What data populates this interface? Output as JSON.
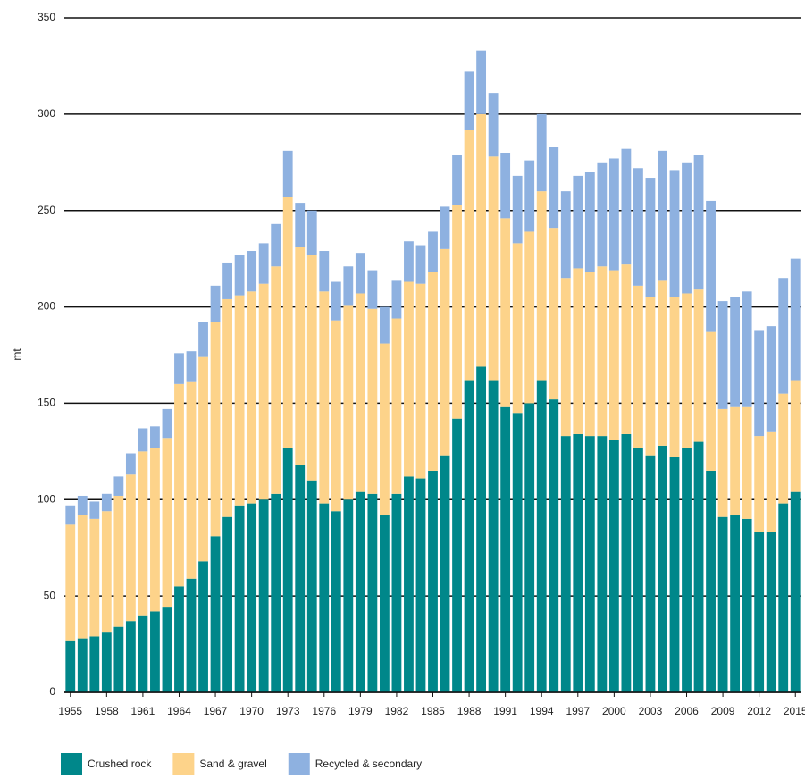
{
  "chart_data": {
    "type": "stacked-bar",
    "y_label": "mt",
    "categories": [
      "1955",
      null,
      null,
      "1958",
      null,
      null,
      "1961",
      null,
      null,
      "1964",
      null,
      null,
      "1967",
      null,
      null,
      "1970",
      null,
      null,
      "1973",
      null,
      null,
      "1976",
      null,
      null,
      "1979",
      null,
      null,
      "1982",
      null,
      null,
      "1985",
      null,
      null,
      "1988",
      null,
      null,
      "1991",
      null,
      null,
      "1994",
      null,
      null,
      "1997",
      null,
      null,
      "2000",
      null,
      null,
      "2003",
      null,
      null,
      "2006",
      null,
      null,
      "2009",
      null,
      null,
      "2012",
      null,
      null,
      "2015"
    ],
    "series": [
      {
        "name": "Crushed rock",
        "color": "#00878a",
        "values": [
          27,
          28,
          29,
          31,
          34,
          37,
          40,
          42,
          44,
          55,
          59,
          68,
          81,
          91,
          97,
          98,
          100,
          103,
          127,
          118,
          110,
          98,
          94,
          100,
          104,
          103,
          92,
          103,
          112,
          111,
          115,
          123,
          142,
          162,
          169,
          162,
          148,
          145,
          150,
          162,
          152,
          133,
          134,
          133,
          133,
          131,
          134,
          127,
          123,
          128,
          122,
          127,
          130,
          115,
          91,
          92,
          90,
          83,
          83,
          98,
          104
        ]
      },
      {
        "name": "Sand & gravel",
        "color": "#fdd38a",
        "values": [
          60,
          64,
          61,
          63,
          68,
          76,
          85,
          85,
          88,
          105,
          102,
          106,
          111,
          113,
          109,
          110,
          112,
          118,
          130,
          113,
          117,
          110,
          99,
          101,
          103,
          96,
          89,
          91,
          101,
          101,
          103,
          107,
          111,
          130,
          131,
          116,
          98,
          88,
          89,
          98,
          89,
          82,
          86,
          85,
          88,
          88,
          88,
          84,
          82,
          86,
          83,
          80,
          79,
          72,
          56,
          56,
          58,
          50,
          52,
          57,
          58
        ]
      },
      {
        "name": "Recycled & secondary",
        "color": "#8eb1e0",
        "values": [
          10,
          10,
          9,
          9,
          10,
          11,
          12,
          11,
          15,
          16,
          16,
          18,
          19,
          19,
          21,
          21,
          21,
          22,
          24,
          23,
          23,
          21,
          20,
          20,
          21,
          20,
          19,
          20,
          21,
          20,
          21,
          22,
          26,
          30,
          33,
          33,
          34,
          35,
          37,
          40,
          42,
          45,
          48,
          52,
          54,
          58,
          60,
          61,
          62,
          67,
          66,
          68,
          70,
          68,
          56,
          57,
          60,
          55,
          55,
          60,
          63
        ]
      }
    ],
    "ylim": [
      0,
      350
    ],
    "yticks": [
      0,
      50,
      100,
      150,
      200,
      250,
      300,
      350
    ],
    "grid": true,
    "legend": "bottom"
  }
}
